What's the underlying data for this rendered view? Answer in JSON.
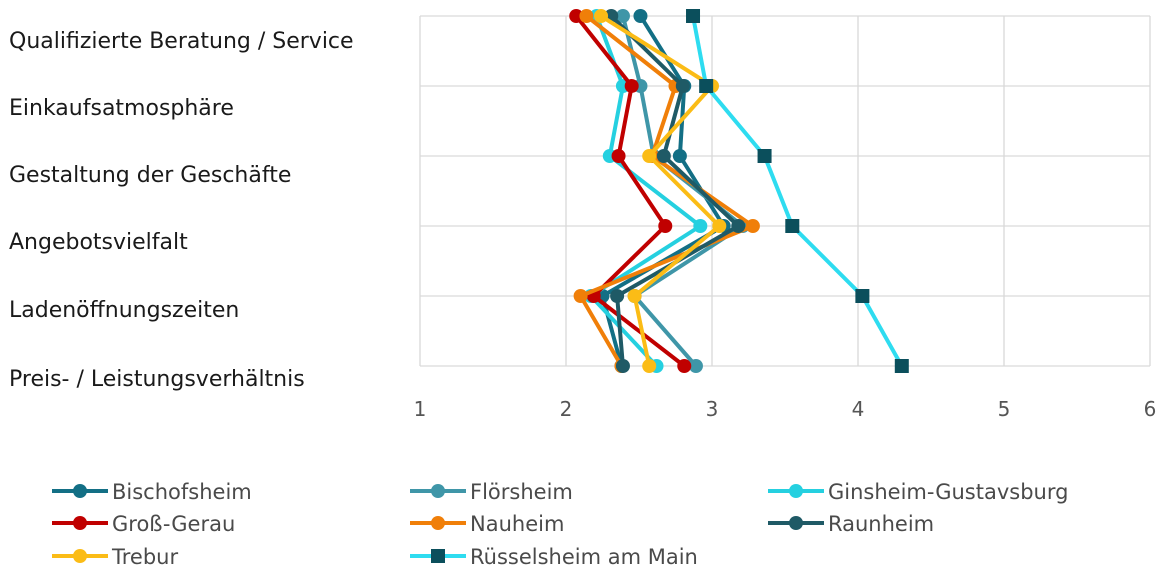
{
  "chart_data": {
    "type": "line",
    "orientation": "horizontal",
    "categories": [
      "Qualifizierte Beratung / Service",
      "Einkaufsatmosphäre",
      "Gestaltung der Geschäfte",
      "Angebotsvielfalt",
      "Ladenöffnungszeiten",
      "Preis- / Leistungsverhältnis"
    ],
    "xlim": [
      1,
      6
    ],
    "xticks": [
      "1",
      "2",
      "3",
      "4",
      "5",
      "6"
    ],
    "grid": true,
    "legend_position": "bottom",
    "series": [
      {
        "name": "Bischofsheim",
        "color": "#136f85",
        "marker": "circle",
        "values": [
          2.51,
          2.81,
          2.78,
          3.08,
          2.25,
          2.38
        ]
      },
      {
        "name": "Flörsheim",
        "color": "#3f96a8",
        "marker": "circle",
        "values": [
          2.39,
          2.51,
          2.6,
          3.21,
          2.47,
          2.89
        ]
      },
      {
        "name": "Ginsheim-Gustavsburg",
        "color": "#25d0e0",
        "marker": "circle",
        "values": [
          2.21,
          2.39,
          2.3,
          2.92,
          2.17,
          2.62
        ]
      },
      {
        "name": "Groß-Gerau",
        "color": "#c00000",
        "marker": "circle",
        "values": [
          2.07,
          2.45,
          2.36,
          2.68,
          2.19,
          2.81
        ]
      },
      {
        "name": "Nauheim",
        "color": "#f07f09",
        "marker": "circle",
        "values": [
          2.14,
          2.75,
          2.59,
          3.28,
          2.1,
          2.38
        ]
      },
      {
        "name": "Raunheim",
        "color": "#1f5a66",
        "marker": "circle",
        "values": [
          2.31,
          2.8,
          2.67,
          3.18,
          2.35,
          2.39
        ]
      },
      {
        "name": "Trebur",
        "color": "#fbbc16",
        "marker": "circle",
        "values": [
          2.24,
          3.0,
          2.57,
          3.05,
          2.47,
          2.57
        ]
      },
      {
        "name": "Rüsselsheim am Main",
        "color": "#2edcf0",
        "marker": "square",
        "lineColor": "#2edcf0",
        "markerColor": "#0b4f5c",
        "values": [
          2.87,
          2.96,
          3.36,
          3.55,
          4.03,
          4.3
        ]
      }
    ]
  }
}
